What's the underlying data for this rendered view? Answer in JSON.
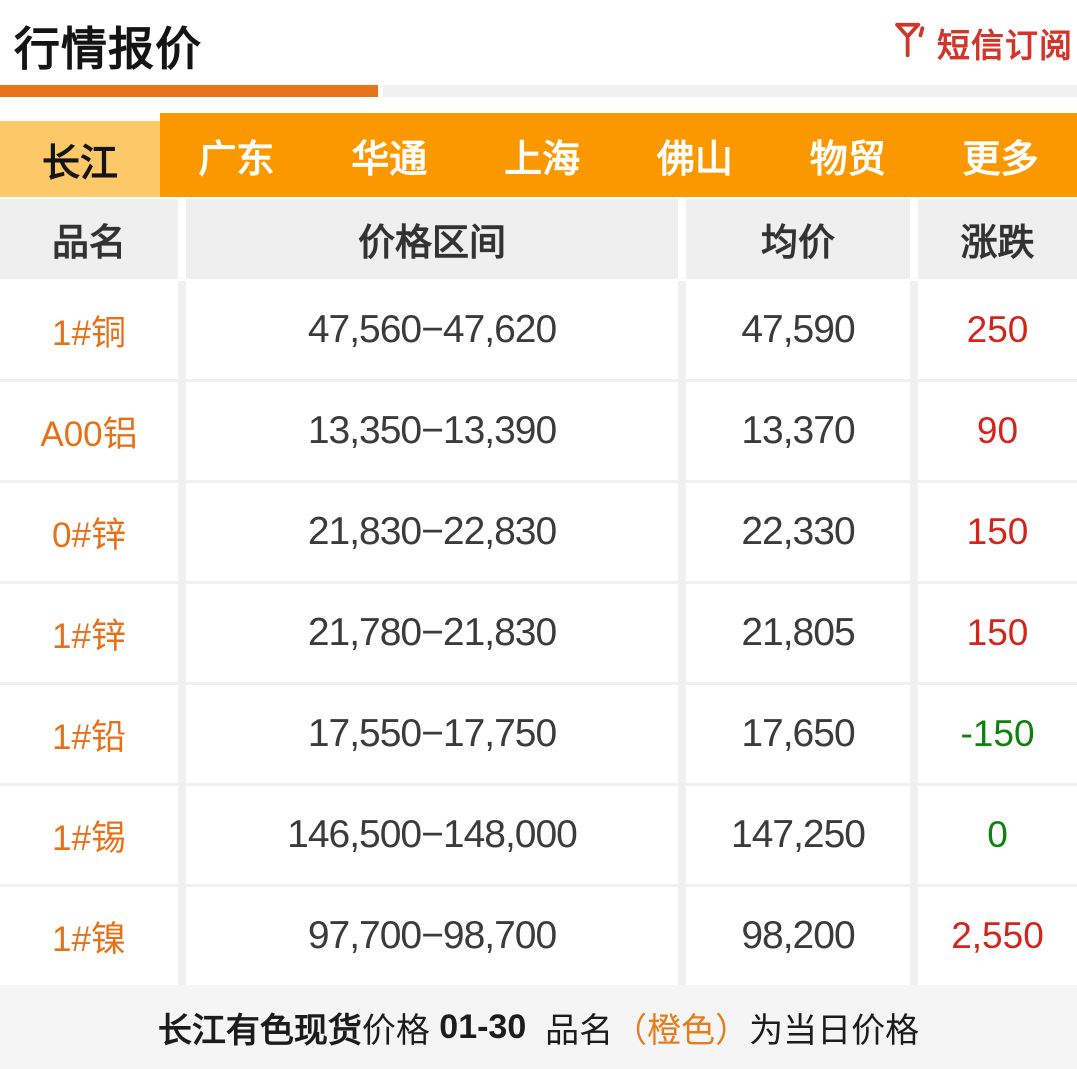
{
  "header": {
    "title": "行情报价",
    "subscribe_label": "短信订阅"
  },
  "tabs": {
    "active": "长江",
    "others": [
      "广东",
      "华通",
      "上海",
      "佛山",
      "物贸",
      "更多"
    ]
  },
  "table": {
    "columns": [
      "品名",
      "价格区间",
      "均价",
      "涨跌"
    ],
    "rows": [
      {
        "name": "1#铜",
        "range": "47,560−47,620",
        "avg": "47,590",
        "change": "250",
        "change_color": "red"
      },
      {
        "name": "A00铝",
        "range": "13,350−13,390",
        "avg": "13,370",
        "change": "90",
        "change_color": "red"
      },
      {
        "name": "0#锌",
        "range": "21,830−22,830",
        "avg": "22,330",
        "change": "150",
        "change_color": "red"
      },
      {
        "name": "1#锌",
        "range": "21,780−21,830",
        "avg": "21,805",
        "change": "150",
        "change_color": "red"
      },
      {
        "name": "1#铅",
        "range": "17,550−17,750",
        "avg": "17,650",
        "change": "-150",
        "change_color": "green"
      },
      {
        "name": "1#锡",
        "range": "146,500−148,000",
        "avg": "147,250",
        "change": "0",
        "change_color": "green"
      },
      {
        "name": "1#镍",
        "range": "97,700−98,700",
        "avg": "98,200",
        "change": "2,550",
        "change_color": "red"
      }
    ]
  },
  "footer": {
    "segments": [
      {
        "text": "长江有色现货",
        "bold": true,
        "orange": false
      },
      {
        "text": "价格 ",
        "bold": false,
        "orange": false
      },
      {
        "text": "01-30",
        "bold": true,
        "orange": false
      },
      {
        "text": "  品名",
        "bold": false,
        "orange": false
      },
      {
        "text": "（橙色）",
        "bold": false,
        "orange": true
      },
      {
        "text": "为当日价格",
        "bold": false,
        "orange": false
      }
    ]
  },
  "colors": {
    "accent_orange": "#fb9800",
    "active_tab_orange": "#fdc968",
    "rule_orange": "#e97318",
    "product_orange": "#e87118",
    "up_red": "#d3251d",
    "down_green": "#0e820e",
    "subscribe_red": "#d2362b"
  }
}
